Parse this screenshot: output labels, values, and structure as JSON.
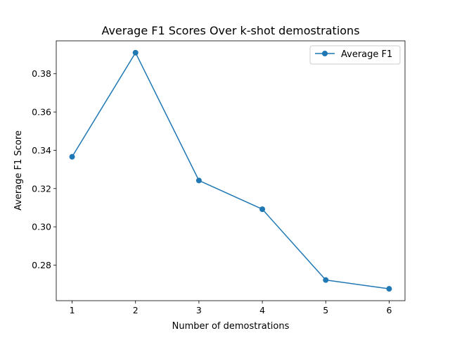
{
  "chart_data": {
    "type": "line",
    "title": "Average F1 Scores Over k-shot demostrations",
    "xlabel": "Number of demostrations",
    "ylabel": "Average F1 Score",
    "x": [
      1,
      2,
      3,
      4,
      5,
      6
    ],
    "series": [
      {
        "name": "Average F1",
        "values": [
          0.3366,
          0.391,
          0.3242,
          0.3092,
          0.2722,
          0.2676
        ],
        "color": "#1f77b4",
        "marker": "circle"
      }
    ],
    "xlim": [
      0.75,
      6.25
    ],
    "ylim": [
      0.2614,
      0.3972
    ],
    "xticks": [
      1,
      2,
      3,
      4,
      5,
      6
    ],
    "xtick_labels": [
      "1",
      "2",
      "3",
      "4",
      "5",
      "6"
    ],
    "yticks": [
      0.28,
      0.3,
      0.32,
      0.34,
      0.36,
      0.38
    ],
    "ytick_labels": [
      "0.28",
      "0.30",
      "0.32",
      "0.34",
      "0.36",
      "0.38"
    ],
    "grid": false,
    "legend_position": "upper right"
  }
}
